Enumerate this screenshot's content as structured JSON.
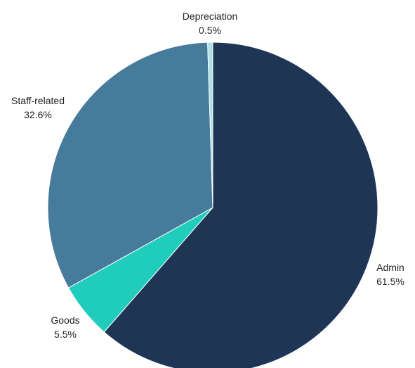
{
  "chart_data": {
    "type": "pie",
    "slices": [
      {
        "label": "Admin",
        "value": 61.5,
        "value_label": "61.5%",
        "color": "#1e3556"
      },
      {
        "label": "Goods",
        "value": 5.5,
        "value_label": "5.5%",
        "color": "#20cdbd"
      },
      {
        "label": "Staff-related",
        "value": 32.6,
        "value_label": "32.6%",
        "color": "#477b9c"
      },
      {
        "label": "Depreciation",
        "value": 0.5,
        "value_label": "0.5%",
        "color": "#aee0e6"
      }
    ],
    "start": "12 o'clock",
    "direction": "clockwise"
  }
}
